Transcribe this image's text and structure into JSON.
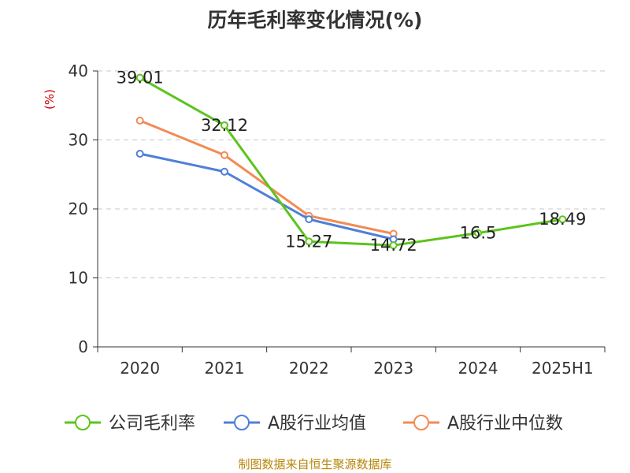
{
  "title": "历年毛利率变化情况(%)",
  "source": "制图数据来自恒生聚源数据库",
  "chart_data": {
    "type": "line",
    "categories": [
      "2020",
      "2021",
      "2022",
      "2023",
      "2024",
      "2025H1"
    ],
    "ylabel": "(%)",
    "ylim": [
      0,
      40
    ],
    "yticks": [
      "0",
      "10",
      "20",
      "30",
      "40"
    ],
    "grid": true,
    "legend_position": "bottom",
    "series": [
      {
        "name": "公司毛利率",
        "color": "#5cc41c",
        "values": [
          39.01,
          32.12,
          15.27,
          14.72,
          16.5,
          18.49
        ],
        "labels": [
          "39.01",
          "32.12",
          "15.27",
          "14.72",
          "16.5",
          "18.49"
        ]
      },
      {
        "name": "A股行业均值",
        "color": "#4f7fd8",
        "values": [
          28.0,
          25.4,
          18.5,
          15.6,
          null,
          null
        ]
      },
      {
        "name": "A股行业中位数",
        "color": "#f28b55",
        "values": [
          32.8,
          27.8,
          19.0,
          16.4,
          null,
          null
        ]
      }
    ]
  }
}
